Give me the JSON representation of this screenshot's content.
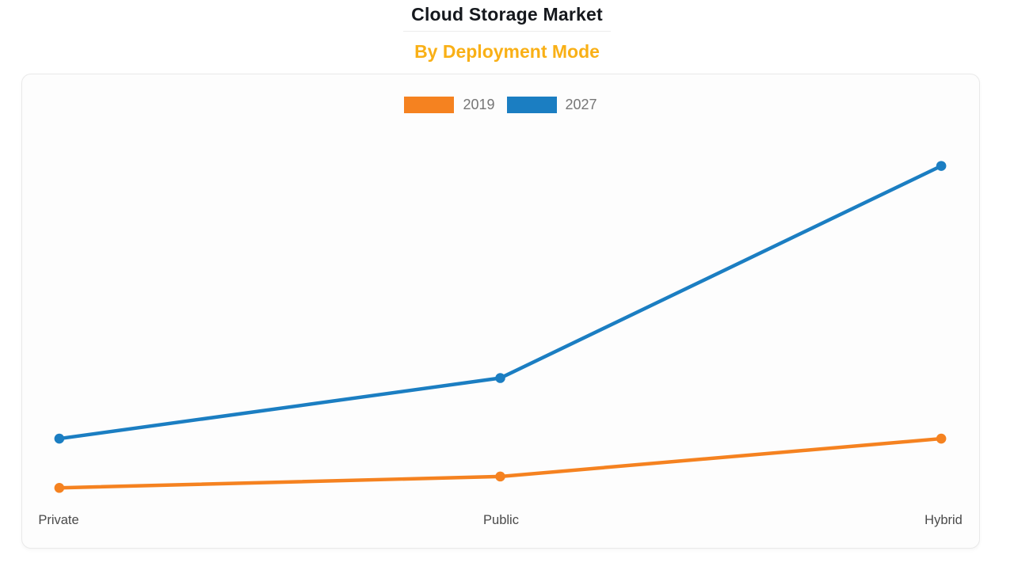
{
  "header": {
    "title": "Cloud Storage Market",
    "subtitle": "By Deployment Mode"
  },
  "chart_data": {
    "type": "line",
    "title": "Cloud Storage Market",
    "subtitle": "By Deployment Mode",
    "categories": [
      "Private",
      "Public",
      "Hybrid"
    ],
    "series": [
      {
        "name": "2019",
        "color": "#F58220",
        "values": [
          5,
          8,
          18
        ]
      },
      {
        "name": "2027",
        "color": "#1B7EC2",
        "values": [
          18,
          34,
          90
        ]
      }
    ],
    "xlabel": "",
    "ylabel": "",
    "ylim": [
      0,
      100
    ],
    "grid": false,
    "y_axis_visible": false,
    "x_axis_visible": false,
    "markers": true,
    "legend_position": "top-center",
    "note": "No numeric axis is displayed; values are estimated relative heights on a 0-100 scale read from the plot"
  },
  "colors": {
    "title_text": "#15181D",
    "subtitle_text": "#F9B016",
    "series_2019": "#F58220",
    "series_2027": "#1B7EC2",
    "legend_text": "#767676",
    "axis_label_text": "#4A4A4A",
    "card_background": "#FDFDFD",
    "card_border": "#E9E9E9",
    "page_background": "#FFFFFF"
  }
}
